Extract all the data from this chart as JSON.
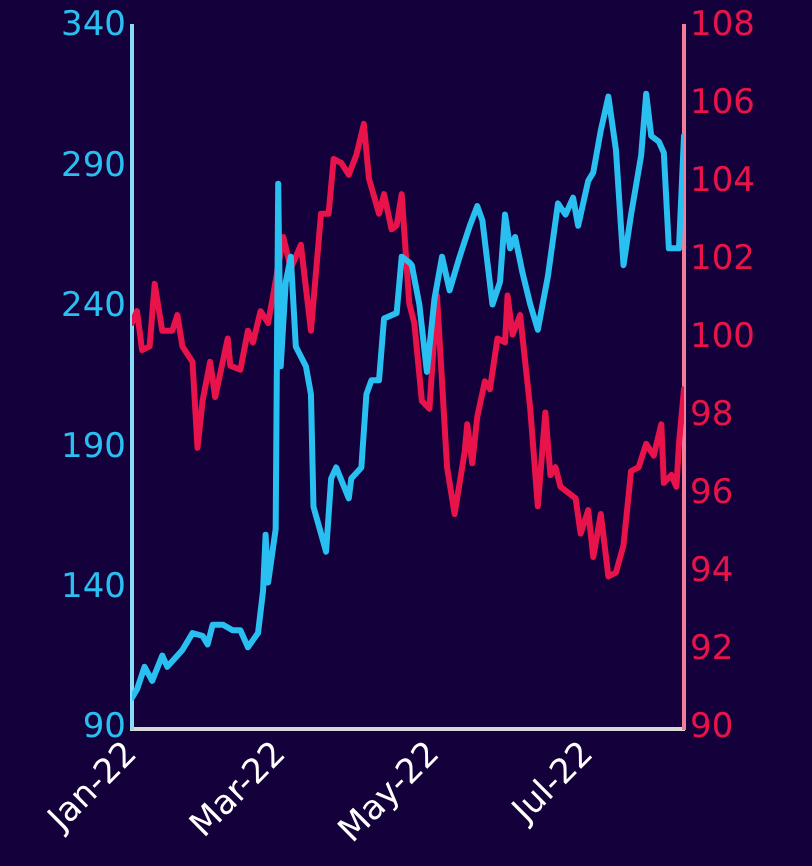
{
  "chart_data": {
    "type": "line",
    "xlim": [
      "2022-01-01",
      "2022-08-08"
    ],
    "xticks": [
      {
        "value": "2022-01-01",
        "label": "Jan-22"
      },
      {
        "value": "2022-03-01",
        "label": "Mar-22"
      },
      {
        "value": "2022-05-01",
        "label": "May-22"
      },
      {
        "value": "2022-07-01",
        "label": "Jul-22"
      }
    ],
    "ylim": [
      90,
      340
    ],
    "yticks": [
      90,
      140,
      190,
      240,
      290,
      340
    ],
    "y2lim": [
      90,
      108
    ],
    "y2ticks": [
      90,
      92,
      94,
      96,
      98,
      100,
      102,
      104,
      106,
      108
    ],
    "grid": false,
    "legend": false,
    "marker": "none",
    "line_style": "solid",
    "series": [
      {
        "color": "#29bff0",
        "x": [
          "2022-01-01",
          "2022-01-03",
          "2022-01-06",
          "2022-01-09",
          "2022-01-13",
          "2022-01-15",
          "2022-01-21",
          "2022-01-25",
          "2022-01-29",
          "2022-01-31",
          "2022-02-02",
          "2022-02-06",
          "2022-02-10",
          "2022-02-13",
          "2022-02-16",
          "2022-02-20",
          "2022-02-22",
          "2022-02-23",
          "2022-02-24",
          "2022-02-27",
          "2022-02-28",
          "2022-03-01",
          "2022-03-03",
          "2022-03-05",
          "2022-03-07",
          "2022-03-11",
          "2022-03-13",
          "2022-03-14",
          "2022-03-19",
          "2022-03-21",
          "2022-03-23",
          "2022-03-28",
          "2022-03-29",
          "2022-04-02",
          "2022-04-04",
          "2022-04-06",
          "2022-04-09",
          "2022-04-11",
          "2022-04-16",
          "2022-04-18",
          "2022-04-21",
          "2022-04-22",
          "2022-04-25",
          "2022-04-28",
          "2022-05-01",
          "2022-05-04",
          "2022-05-07",
          "2022-05-11",
          "2022-05-15",
          "2022-05-18",
          "2022-05-20",
          "2022-05-24",
          "2022-05-27",
          "2022-05-29",
          "2022-05-31",
          "2022-06-02",
          "2022-06-05",
          "2022-06-08",
          "2022-06-11",
          "2022-06-15",
          "2022-06-19",
          "2022-06-22",
          "2022-06-25",
          "2022-06-27",
          "2022-07-01",
          "2022-07-03",
          "2022-07-06",
          "2022-07-09",
          "2022-07-12",
          "2022-07-15",
          "2022-07-18",
          "2022-07-22",
          "2022-07-24",
          "2022-07-26",
          "2022-07-29",
          "2022-07-31",
          "2022-08-02",
          "2022-08-06",
          "2022-08-08"
        ],
        "values": [
          101,
          104,
          112,
          107,
          116,
          112,
          118,
          124,
          123,
          120,
          127,
          127,
          125,
          125,
          119,
          124,
          139,
          159,
          142,
          161,
          284,
          219,
          249,
          258,
          226,
          219,
          209,
          169,
          153,
          179,
          183,
          172,
          179,
          183,
          209,
          214,
          214,
          236,
          238,
          258,
          256,
          255,
          241,
          217,
          243,
          258,
          246,
          258,
          269,
          276,
          271,
          241,
          249,
          273,
          261,
          265,
          252,
          241,
          232,
          251,
          277,
          273,
          279,
          269,
          285,
          288,
          303,
          315,
          296,
          255,
          273,
          294,
          316,
          301,
          299,
          295,
          261,
          261,
          301
        ]
      },
      {
        "color": "#e8134a",
        "axis": "y2",
        "x": [
          "2022-01-01",
          "2022-01-03",
          "2022-01-05",
          "2022-01-08",
          "2022-01-10",
          "2022-01-13",
          "2022-01-17",
          "2022-01-19",
          "2022-01-21",
          "2022-01-25",
          "2022-01-27",
          "2022-01-29",
          "2022-02-01",
          "2022-02-03",
          "2022-02-08",
          "2022-02-09",
          "2022-02-13",
          "2022-02-16",
          "2022-02-18",
          "2022-02-21",
          "2022-02-24",
          "2022-02-26",
          "2022-03-02",
          "2022-03-05",
          "2022-03-09",
          "2022-03-13",
          "2022-03-17",
          "2022-03-20",
          "2022-03-22",
          "2022-03-25",
          "2022-03-28",
          "2022-03-31",
          "2022-04-03",
          "2022-04-05",
          "2022-04-09",
          "2022-04-11",
          "2022-04-14",
          "2022-04-16",
          "2022-04-18",
          "2022-04-21",
          "2022-04-23",
          "2022-04-26",
          "2022-04-29",
          "2022-05-02",
          "2022-05-06",
          "2022-05-09",
          "2022-05-13",
          "2022-05-14",
          "2022-05-16",
          "2022-05-18",
          "2022-05-21",
          "2022-05-23",
          "2022-05-26",
          "2022-05-29",
          "2022-05-30",
          "2022-06-01",
          "2022-06-04",
          "2022-06-08",
          "2022-06-11",
          "2022-06-14",
          "2022-06-16",
          "2022-06-18",
          "2022-06-20",
          "2022-06-22",
          "2022-06-26",
          "2022-06-28",
          "2022-07-01",
          "2022-07-03",
          "2022-07-06",
          "2022-07-09",
          "2022-07-12",
          "2022-07-15",
          "2022-07-18",
          "2022-07-21",
          "2022-07-24",
          "2022-07-27",
          "2022-07-30",
          "2022-07-31",
          "2022-08-03",
          "2022-08-05",
          "2022-08-06",
          "2022-08-08"
        ],
        "values": [
          100.4,
          100.7,
          99.7,
          99.8,
          101.4,
          100.2,
          100.2,
          100.6,
          99.8,
          99.4,
          97.2,
          98.4,
          99.4,
          98.5,
          100.0,
          99.3,
          99.2,
          100.2,
          99.9,
          100.7,
          100.4,
          101.1,
          102.6,
          101.8,
          102.4,
          100.2,
          103.2,
          103.2,
          104.6,
          104.5,
          104.2,
          104.7,
          105.5,
          104.1,
          103.2,
          103.7,
          102.8,
          102.9,
          103.7,
          100.9,
          100.4,
          98.4,
          98.2,
          101.1,
          96.7,
          95.5,
          97.1,
          97.8,
          96.8,
          98.0,
          98.9,
          98.7,
          100.0,
          99.9,
          101.1,
          100.1,
          100.6,
          98.2,
          95.7,
          98.1,
          96.5,
          96.7,
          96.2,
          96.1,
          95.9,
          95.0,
          95.6,
          94.4,
          95.5,
          93.9,
          94.0,
          94.7,
          96.6,
          96.7,
          97.3,
          97.0,
          97.8,
          96.3,
          96.5,
          96.2,
          97.3,
          98.7
        ]
      }
    ]
  }
}
